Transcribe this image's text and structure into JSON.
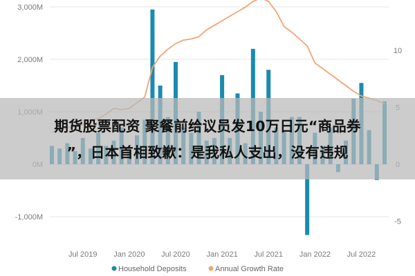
{
  "chart_data": {
    "type": "bar+line",
    "x_ticks": [
      "Jul 2019",
      "Jan 2020",
      "Jul 2020",
      "Jan 2021",
      "Jul 2021",
      "Jan 2022",
      "Jul 2022"
    ],
    "y_left_ticks": [
      "3,000M",
      "2,000M",
      "1,000M",
      "0M",
      "-1,000M"
    ],
    "y_right_ticks": [
      "10",
      "5",
      "0",
      "-5"
    ],
    "y_left_range": [
      -1500,
      3100
    ],
    "y_right_range": [
      -7,
      15.5
    ],
    "categories": [
      "2019-03",
      "2019-04",
      "2019-05",
      "2019-06",
      "2019-07",
      "2019-08",
      "2019-09",
      "2019-10",
      "2019-11",
      "2019-12",
      "2020-01",
      "2020-02",
      "2020-03",
      "2020-04",
      "2020-05",
      "2020-06",
      "2020-07",
      "2020-08",
      "2020-09",
      "2020-10",
      "2020-11",
      "2020-12",
      "2021-01",
      "2021-02",
      "2021-03",
      "2021-04",
      "2021-05",
      "2021-06",
      "2021-07",
      "2021-08",
      "2021-09",
      "2021-10",
      "2021-11",
      "2021-12",
      "2022-01",
      "2022-02",
      "2022-03",
      "2022-04",
      "2022-05",
      "2022-06",
      "2022-07",
      "2022-08",
      "2022-09",
      "2022-10"
    ],
    "series": [
      {
        "name": "Household Deposits",
        "kind": "bar",
        "color": "#1a8bb0",
        "values": [
          350,
          300,
          400,
          250,
          500,
          300,
          600,
          350,
          450,
          700,
          300,
          550,
          850,
          2950,
          1500,
          900,
          1950,
          700,
          600,
          1000,
          450,
          500,
          1700,
          500,
          1350,
          400,
          2200,
          1000,
          1800,
          700,
          650,
          900,
          900,
          -1350,
          600,
          350,
          700,
          -150,
          450,
          1250,
          1550,
          650,
          -300,
          1200
        ]
      },
      {
        "name": "Annual Growth Rate",
        "kind": "line",
        "color": "#f2a474",
        "values": [
          2.8,
          3.0,
          3.2,
          3.3,
          3.5,
          3.9,
          4.0,
          4.4,
          4.9,
          4.8,
          4.9,
          5.4,
          5.9,
          8.5,
          9.5,
          10.1,
          10.6,
          10.9,
          11.0,
          11.2,
          11.8,
          12.2,
          12.6,
          13.0,
          13.4,
          13.8,
          14.3,
          14.6,
          14.3,
          13.4,
          12.1,
          11.6,
          11.0,
          10.4,
          8.9,
          8.4,
          7.9,
          7.4,
          6.9,
          6.4,
          6.0,
          5.8,
          5.6,
          5.3
        ]
      }
    ],
    "legend": {
      "position": "bottom",
      "items": [
        "Household Deposits",
        "Annual Growth Rate"
      ]
    }
  },
  "overlay": {
    "line1": "期货股票配资 聚餐前给议员发10万日元“商品券",
    "line2": "”，日本首相致歉：是我私人支出，没有违规"
  }
}
